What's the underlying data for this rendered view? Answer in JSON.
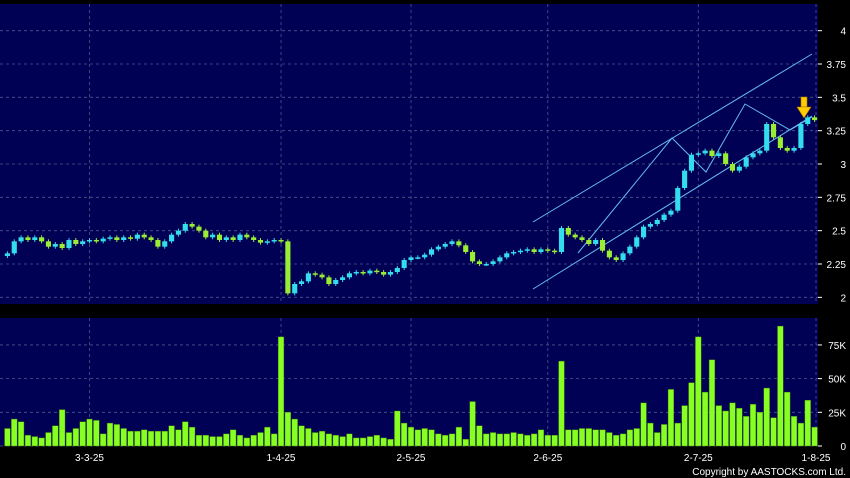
{
  "chart_data": [
    {
      "type": "candlestick",
      "title": "",
      "ylim": [
        1.95,
        4.2
      ],
      "y_ticks": [
        "4",
        "3.75",
        "3.5",
        "3.25",
        "3",
        "2.75",
        "2.5",
        "2.25",
        "2"
      ],
      "x_ticks": [
        "3-3-25",
        "1-4-25",
        "2-5-25",
        "2-6-25",
        "2-7-25",
        "1-8-25"
      ],
      "grid": true,
      "colors": {
        "background": "#000055",
        "up": "#33ddee",
        "down": "#99ee33",
        "grid": "#4a5a8a",
        "trendline": "#66bbee",
        "marker": "#ffcc00"
      },
      "closes": [
        2.33,
        2.42,
        2.45,
        2.43,
        2.45,
        2.42,
        2.38,
        2.4,
        2.37,
        2.43,
        2.4,
        2.42,
        2.43,
        2.42,
        2.44,
        2.45,
        2.43,
        2.45,
        2.44,
        2.47,
        2.45,
        2.43,
        2.38,
        2.42,
        2.47,
        2.5,
        2.55,
        2.53,
        2.5,
        2.45,
        2.47,
        2.43,
        2.45,
        2.43,
        2.47,
        2.45,
        2.43,
        2.41,
        2.42,
        2.43,
        2.42,
        2.03,
        2.1,
        2.12,
        2.18,
        2.17,
        2.15,
        2.1,
        2.13,
        2.15,
        2.18,
        2.19,
        2.18,
        2.2,
        2.19,
        2.17,
        2.19,
        2.22,
        2.28,
        2.3,
        2.3,
        2.32,
        2.36,
        2.38,
        2.4,
        2.42,
        2.39,
        2.34,
        2.27,
        2.25,
        2.25,
        2.27,
        2.3,
        2.33,
        2.34,
        2.35,
        2.36,
        2.34,
        2.36,
        2.35,
        2.34,
        2.52,
        2.47,
        2.45,
        2.43,
        2.4,
        2.43,
        2.35,
        2.3,
        2.28,
        2.33,
        2.38,
        2.45,
        2.53,
        2.55,
        2.58,
        2.62,
        2.65,
        2.82,
        2.95,
        3.07,
        3.08,
        3.1,
        3.06,
        3.08,
        3.0,
        2.95,
        2.98,
        3.05,
        3.08,
        3.1,
        3.3,
        3.2,
        3.12,
        3.1,
        3.12,
        3.3,
        3.35,
        3.33
      ],
      "volume_ylim": [
        0,
        95000
      ],
      "volume_y_ticks": [
        "75K",
        "50K",
        "25K",
        "0"
      ],
      "volumes": [
        13000,
        20000,
        18000,
        8000,
        7000,
        6000,
        10000,
        15000,
        27000,
        10000,
        13000,
        18000,
        20000,
        19000,
        9000,
        17000,
        16000,
        13000,
        11000,
        11000,
        12000,
        11000,
        11000,
        11000,
        15000,
        12000,
        18000,
        14000,
        8000,
        8000,
        7000,
        7000,
        9000,
        12000,
        8000,
        6000,
        8000,
        10000,
        14000,
        9000,
        81000,
        25000,
        20000,
        15000,
        13000,
        10000,
        11000,
        9000,
        8000,
        7000,
        9000,
        6000,
        6000,
        7000,
        8000,
        6000,
        5000,
        26000,
        17000,
        14000,
        12000,
        13000,
        12000,
        9000,
        8000,
        9000,
        14000,
        5000,
        33000,
        15000,
        9000,
        10000,
        9000,
        9000,
        10000,
        9000,
        8000,
        9000,
        12000,
        8000,
        8000,
        63000,
        12000,
        12000,
        13000,
        13000,
        12000,
        12000,
        10000,
        8000,
        9000,
        12000,
        13000,
        32000,
        17000,
        10000,
        16000,
        42000,
        17000,
        30000,
        47000,
        81000,
        40000,
        64000,
        30000,
        26000,
        32000,
        28000,
        22000,
        31000,
        25000,
        43000,
        21000,
        89000,
        40000,
        22000,
        17000,
        34000,
        14000
      ]
    }
  ],
  "copyright": "Copyright by AASTOCKS.com Ltd."
}
